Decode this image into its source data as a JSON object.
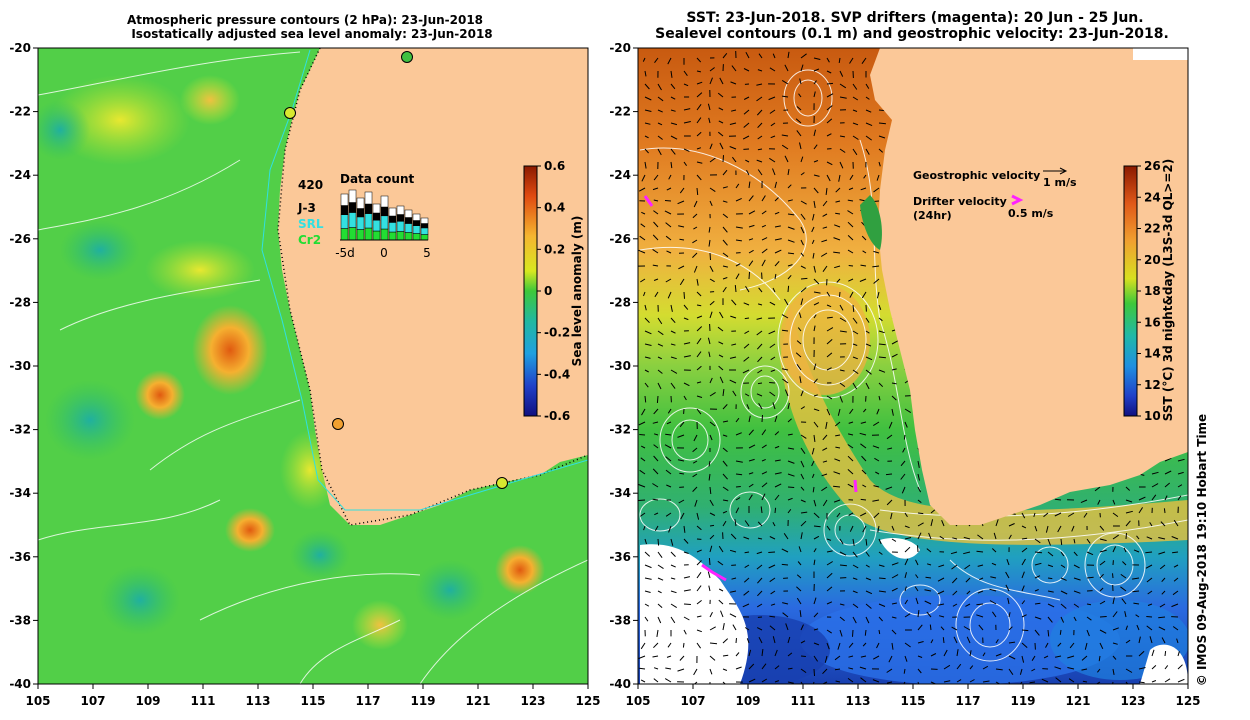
{
  "left_panel": {
    "title_line1": "Atmospheric pressure contours (2 hPa): 23-Jun-2018",
    "title_line2": "Isostatically adjusted sea level anomaly: 23-Jun-2018",
    "x_ticks": [
      "105",
      "107",
      "109",
      "111",
      "113",
      "115",
      "117",
      "119",
      "121",
      "123",
      "125"
    ],
    "y_ticks": [
      "-20",
      "-22",
      "-24",
      "-26",
      "-28",
      "-30",
      "-32",
      "-34",
      "-36",
      "-38",
      "-40"
    ],
    "colorbar": {
      "label": "Sea level anomaly (m)",
      "ticks": [
        "0.6",
        "0.4",
        "0.2",
        "0",
        "-0.2",
        "-0.4",
        "-0.6"
      ]
    },
    "inset": {
      "title": "Data count",
      "count": "420",
      "legend": [
        {
          "label": "J-3",
          "color": "#000000"
        },
        {
          "label": "SRL",
          "color": "#33e0e0"
        },
        {
          "label": "Cr2",
          "color": "#22dd33"
        }
      ],
      "x_ticks": [
        "-5d",
        "0",
        "5"
      ]
    }
  },
  "right_panel": {
    "title_line1": "SST: 23-Jun-2018. SVP drifters (magenta): 20 Jun - 25 Jun.",
    "title_line2": "Sealevel contours (0.1 m) and geostrophic velocity: 23-Jun-2018.",
    "x_ticks": [
      "105",
      "107",
      "109",
      "111",
      "113",
      "115",
      "117",
      "119",
      "121",
      "123",
      "125"
    ],
    "y_ticks": [
      "-20",
      "-22",
      "-24",
      "-26",
      "-28",
      "-30",
      "-32",
      "-34",
      "-36",
      "-38",
      "-40"
    ],
    "colorbar": {
      "label": "SST (°C) 3d night&day (L3S-3d QL>=2)",
      "ticks": [
        "26",
        "24",
        "22",
        "20",
        "18",
        "16",
        "14",
        "12",
        "10"
      ]
    },
    "legend": {
      "geostrophic_label": "Geostrophic velocity",
      "geostrophic_scale": "1 m/s",
      "drifter_label": "Drifter velocity",
      "drifter_sub": "(24hr)",
      "drifter_scale": "0.5 m/s"
    }
  },
  "credit": "© IMOS 09-Aug-2018 19:10 Hobart Time",
  "colors": {
    "land": "#fbc898",
    "sla_sea": "#4fd24a",
    "drifter": "#ff22ff",
    "sst_warm": "#e07a20",
    "sst_cold": "#2050d8"
  }
}
